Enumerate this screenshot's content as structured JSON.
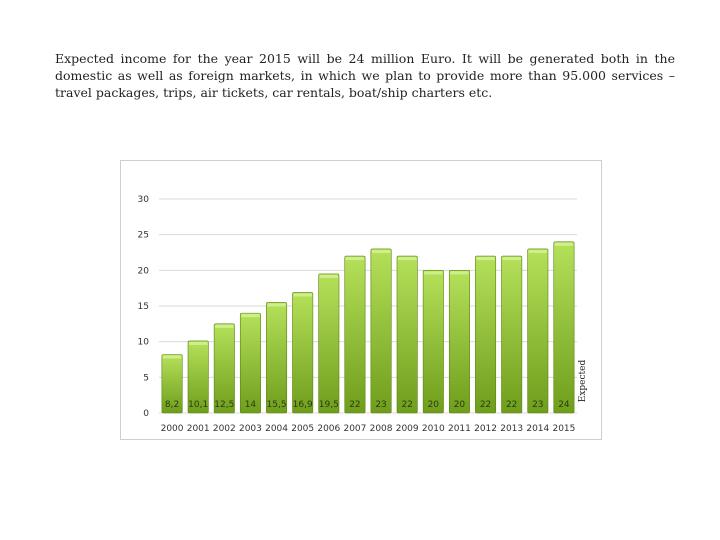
{
  "intro_text": "Expected income for the year 2015 will be 24 million Euro. It will be generated both in the domestic as well as foreign markets, in which we plan to provide more than 95.000 services – travel packages, trips, air tickets, car rentals, boat/ship charters etc.",
  "colors": {
    "bar_top": "#b5e05a",
    "bar_bottom": "#6f9e1c",
    "bar_edge": "#5a8212",
    "grid": "#d9d9d9"
  },
  "chart_data": {
    "type": "bar",
    "categories": [
      "2000",
      "2001",
      "2002",
      "2003",
      "2004",
      "2005",
      "2006",
      "2007",
      "2008",
      "2009",
      "2010",
      "2011",
      "2012",
      "2013",
      "2014",
      "2015"
    ],
    "values": [
      8.2,
      10.1,
      12.5,
      14,
      15.5,
      16.9,
      19.5,
      22,
      23,
      22,
      20,
      20,
      22,
      22,
      23,
      24
    ],
    "data_labels": [
      "8,2",
      "10,1",
      "12,5",
      "14",
      "15,5",
      "16,9",
      "19,5",
      "22",
      "23",
      "22",
      "20",
      "20",
      "22",
      "22",
      "23",
      "24"
    ],
    "yticks": [
      0,
      5,
      10,
      15,
      20,
      25,
      30
    ],
    "ylim": [
      0,
      30
    ],
    "annotation": "Expected",
    "grid": true,
    "title": "",
    "xlabel": "",
    "ylabel": ""
  }
}
